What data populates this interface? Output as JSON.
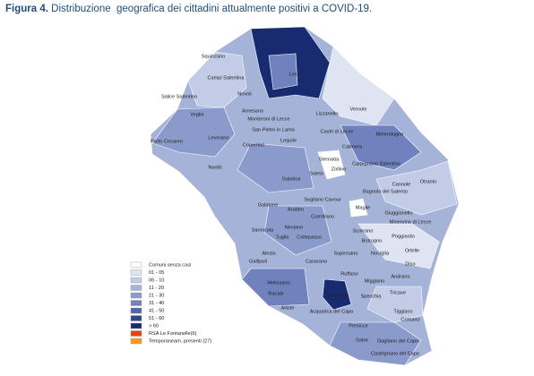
{
  "title": {
    "label": "Figura 4.",
    "text": "Distribuzione  geografica dei cittadini attualmente positivi a COVID-19."
  },
  "legend": [
    {
      "label": "Comuni senza casi",
      "color": "#ffffff"
    },
    {
      "label": "01 - 05",
      "color": "#dfe4f2"
    },
    {
      "label": "06 - 10",
      "color": "#c3cce6"
    },
    {
      "label": "11 - 20",
      "color": "#a6b3d8"
    },
    {
      "label": "21 - 30",
      "color": "#8a9bcb"
    },
    {
      "label": "31 - 40",
      "color": "#6f82bd"
    },
    {
      "label": "41 - 50",
      "color": "#4f65a8"
    },
    {
      "label": "51 - 60",
      "color": "#2f4690"
    },
    {
      "label": "> 60",
      "color": "#182b70"
    },
    {
      "label": "RSA Le Fontanelle(6)",
      "color": "#e8401c"
    },
    {
      "label": "Temporaneam. presenti (27)",
      "color": "#f59a1d"
    }
  ],
  "towns": [
    "Squinzano",
    "Campi Salentina",
    "Salice Salentino",
    "Novoli",
    "Lecce",
    "Veglie",
    "Arnesano",
    "Monteroni di Lecce",
    "Lizzanello",
    "Vernole",
    "San Pietro in Lama",
    "Castri di Lecce",
    "Melendugno",
    "Leverano",
    "Copertino",
    "Lequile",
    "Porto Cesareo",
    "Calimera",
    "Sternatia",
    "Zollino",
    "Carpignano Salentino",
    "Nardò",
    "Galatina",
    "Soleto",
    "Cannole",
    "Otranto",
    "Sogliano Cavour",
    "Bagnolo del Salento",
    "Galatone",
    "Aradeo",
    "Cutrofiano",
    "Maglie",
    "Giuggianello",
    "Minervino di Lecce",
    "Neviano",
    "Sannicola",
    "Tuglie",
    "Collepasso",
    "Scorrano",
    "Botrugno",
    "Poggiardo",
    "Alezio",
    "Gallipoli",
    "Supersano",
    "Nociglia",
    "Ortelle",
    "Diso",
    "Andrano",
    "Casarano",
    "Ruffano",
    "Melissano",
    "Racale",
    "Taurisano",
    "Miggiano",
    "Tricase",
    "Specchia",
    "Alliste",
    "Acquarica del Capo",
    "Tiggiano",
    "Presicce",
    "Corsano",
    "Salve",
    "Gagliano del Capo",
    "Castrignano del Capo"
  ]
}
